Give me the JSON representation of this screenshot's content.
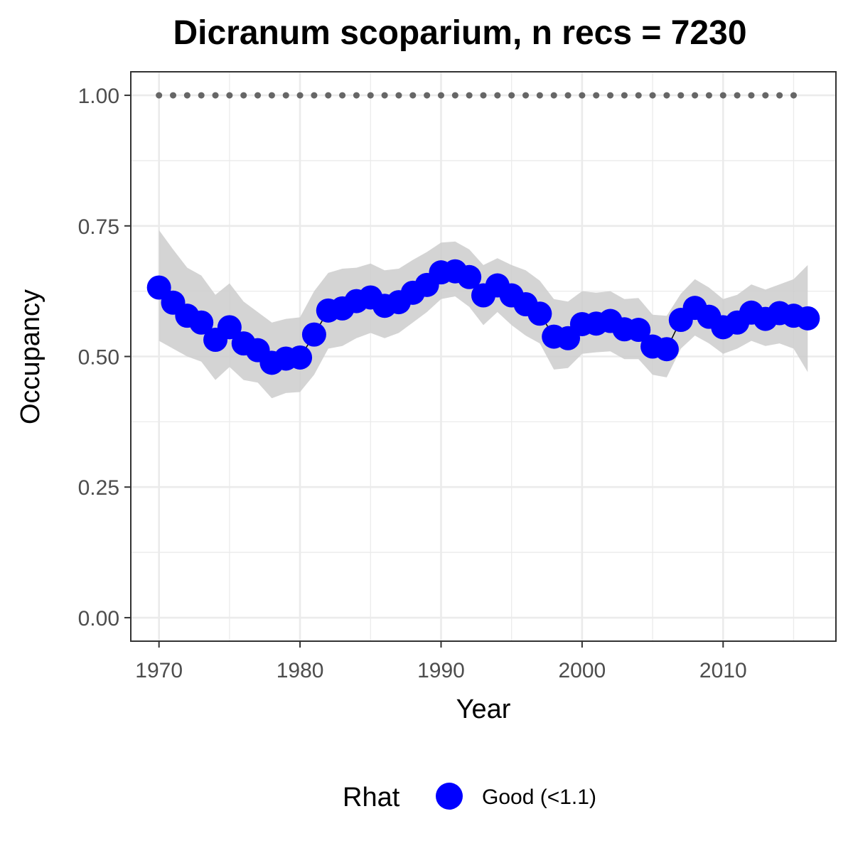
{
  "chart_data": {
    "type": "line",
    "title": "Dicranum scoparium, n recs = 7230",
    "xlabel": "Year",
    "ylabel": "Occupancy",
    "xlim": [
      1968,
      2018
    ],
    "ylim": [
      -0.045,
      1.045
    ],
    "x_ticks": [
      1970,
      1980,
      1990,
      2000,
      2010
    ],
    "x_tick_labels": [
      "1970",
      "1980",
      "1990",
      "2000",
      "2010"
    ],
    "y_ticks": [
      0,
      0.25,
      0.5,
      0.75,
      1.0
    ],
    "y_tick_labels": [
      "0.00",
      "0.25",
      "0.50",
      "0.75",
      "1.00"
    ],
    "grid": true,
    "legend": {
      "title": "Rhat",
      "position": "bottom",
      "entries": [
        {
          "label": "Good (<1.1)",
          "color": "#0000ff"
        }
      ]
    },
    "colors": {
      "points": "#0000ff",
      "ribbon": "#cccccc",
      "reference": "#666666",
      "grid": "#ebebeb",
      "panel_border": "#333333"
    },
    "series": [
      {
        "name": "Good (<1.1)",
        "x": [
          1970,
          1971,
          1972,
          1973,
          1974,
          1975,
          1976,
          1977,
          1978,
          1979,
          1980,
          1981,
          1982,
          1983,
          1984,
          1985,
          1986,
          1987,
          1988,
          1989,
          1990,
          1991,
          1992,
          1993,
          1994,
          1995,
          1996,
          1997,
          1998,
          1999,
          2000,
          2001,
          2002,
          2003,
          2004,
          2005,
          2006,
          2007,
          2008,
          2009,
          2010,
          2011,
          2012,
          2013,
          2014,
          2015,
          2016
        ],
        "values": [
          0.632,
          0.603,
          0.578,
          0.565,
          0.532,
          0.556,
          0.525,
          0.512,
          0.488,
          0.496,
          0.498,
          0.542,
          0.588,
          0.592,
          0.606,
          0.613,
          0.597,
          0.604,
          0.622,
          0.637,
          0.661,
          0.663,
          0.652,
          0.617,
          0.636,
          0.617,
          0.6,
          0.582,
          0.538,
          0.535,
          0.562,
          0.563,
          0.568,
          0.552,
          0.551,
          0.519,
          0.514,
          0.57,
          0.593,
          0.576,
          0.556,
          0.565,
          0.584,
          0.572,
          0.583,
          0.578,
          0.573
        ],
        "lower": [
          0.53,
          0.515,
          0.5,
          0.49,
          0.455,
          0.48,
          0.455,
          0.45,
          0.42,
          0.43,
          0.432,
          0.465,
          0.515,
          0.52,
          0.535,
          0.545,
          0.535,
          0.545,
          0.565,
          0.585,
          0.61,
          0.615,
          0.595,
          0.56,
          0.585,
          0.56,
          0.54,
          0.525,
          0.475,
          0.478,
          0.505,
          0.508,
          0.51,
          0.495,
          0.495,
          0.465,
          0.46,
          0.515,
          0.54,
          0.525,
          0.505,
          0.515,
          0.53,
          0.52,
          0.525,
          0.515,
          0.47
        ],
        "upper": [
          0.742,
          0.705,
          0.67,
          0.655,
          0.618,
          0.64,
          0.605,
          0.585,
          0.565,
          0.572,
          0.575,
          0.625,
          0.66,
          0.668,
          0.67,
          0.678,
          0.665,
          0.668,
          0.685,
          0.7,
          0.718,
          0.72,
          0.705,
          0.675,
          0.688,
          0.675,
          0.665,
          0.645,
          0.61,
          0.605,
          0.625,
          0.622,
          0.625,
          0.61,
          0.612,
          0.58,
          0.578,
          0.62,
          0.648,
          0.632,
          0.61,
          0.618,
          0.638,
          0.628,
          0.638,
          0.648,
          0.675
        ]
      }
    ],
    "reference_line": {
      "y": 1.0,
      "x": [
        1970,
        1971,
        1972,
        1973,
        1974,
        1975,
        1976,
        1977,
        1978,
        1979,
        1980,
        1981,
        1982,
        1983,
        1984,
        1985,
        1986,
        1987,
        1988,
        1989,
        1990,
        1991,
        1992,
        1993,
        1994,
        1995,
        1996,
        1997,
        1998,
        1999,
        2000,
        2001,
        2002,
        2003,
        2004,
        2005,
        2006,
        2007,
        2008,
        2009,
        2010,
        2011,
        2012,
        2013,
        2014,
        2015
      ]
    }
  }
}
